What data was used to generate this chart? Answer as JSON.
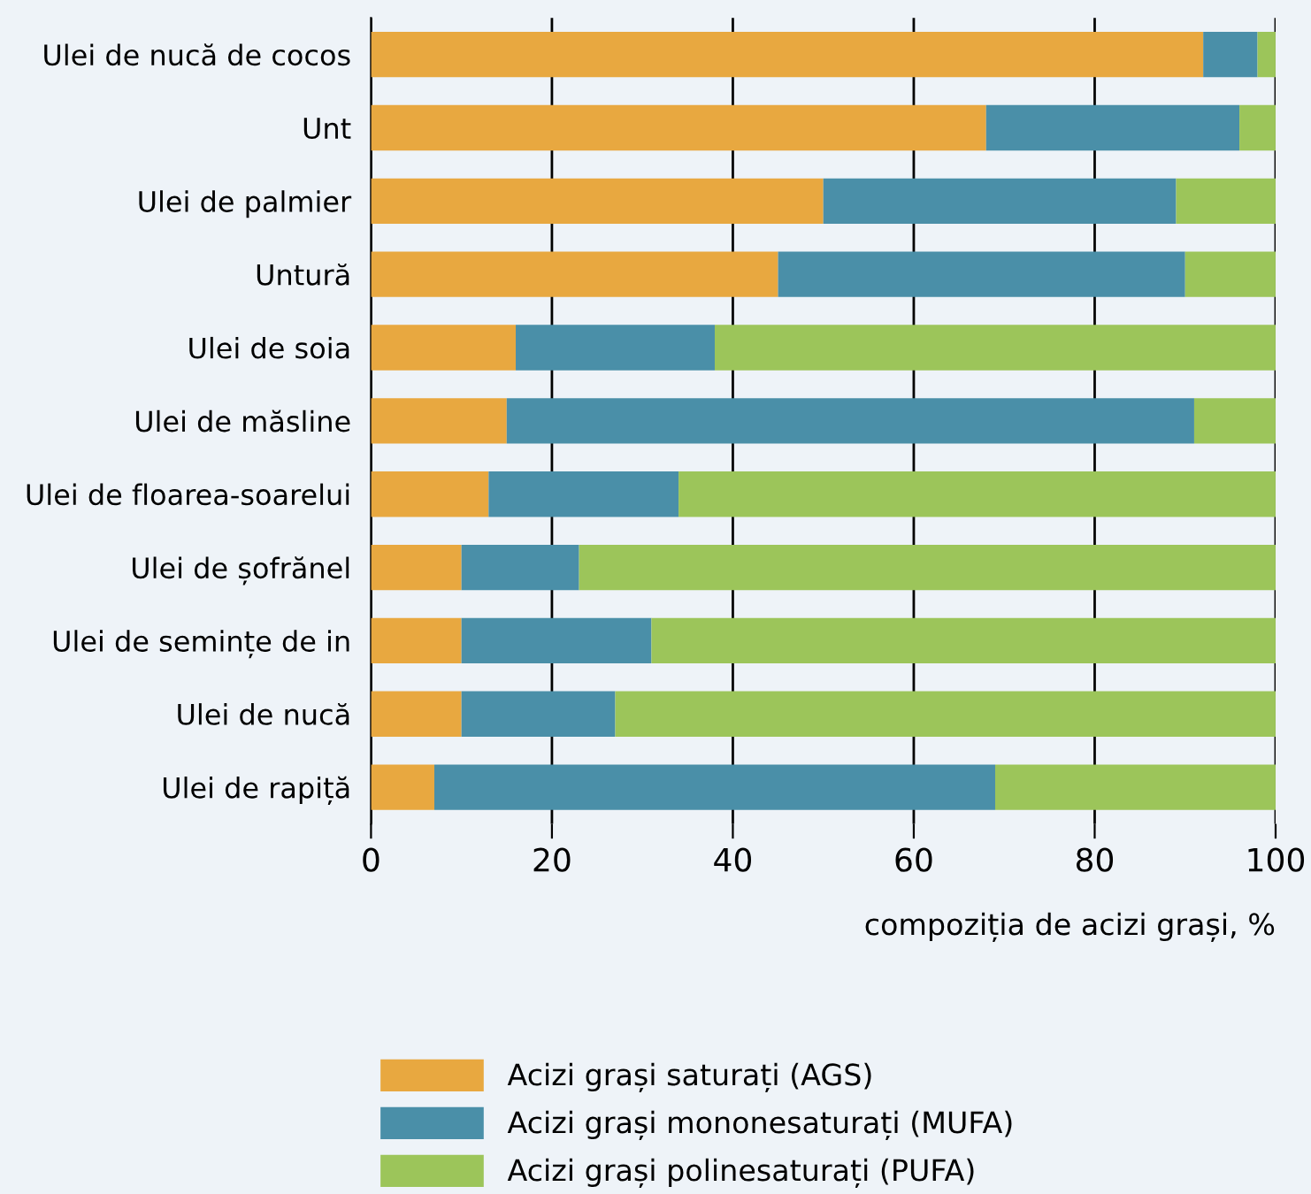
{
  "chart_data": {
    "type": "bar",
    "orientation": "horizontal",
    "stacked": true,
    "xlabel": "compoziția de acizi grași, %",
    "categories": [
      "Ulei de nucă de cocos",
      "Unt",
      "Ulei de palmier",
      "Untură",
      "Ulei de soia",
      "Ulei de măsline",
      "Ulei de floarea-soarelui",
      "Ulei de șofrănel",
      "Ulei de semințe de in",
      "Ulei de nucă",
      "Ulei de rapiță"
    ],
    "series": [
      {
        "name": "Acizi grași saturați (AGS)",
        "color": "#e8a840",
        "values": [
          92,
          68,
          50,
          45,
          16,
          15,
          13,
          10,
          10,
          10,
          7
        ]
      },
      {
        "name": "Acizi grași mononesaturați (MUFA)",
        "color": "#4a8fa8",
        "values": [
          6,
          28,
          39,
          45,
          22,
          76,
          21,
          13,
          21,
          17,
          62
        ]
      },
      {
        "name": "Acizi grași polinesaturați (PUFA)",
        "color": "#9cc55a",
        "values": [
          2,
          4,
          11,
          10,
          62,
          9,
          66,
          77,
          69,
          73,
          31
        ]
      }
    ],
    "xlim": [
      0,
      100
    ],
    "xticks": [
      0,
      20,
      40,
      60,
      80,
      100
    ],
    "grid": "x",
    "legend": "bottom"
  }
}
